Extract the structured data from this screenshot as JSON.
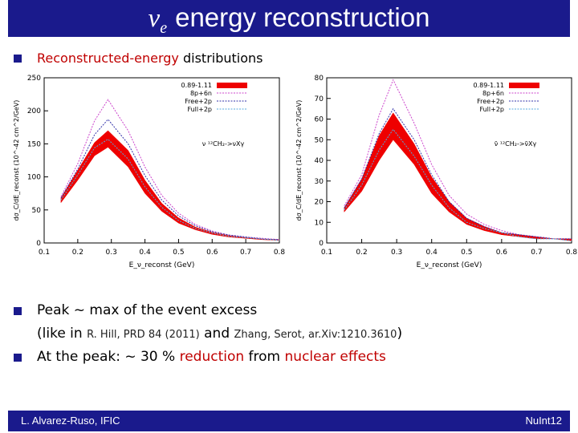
{
  "slide": {
    "title_nu": "ν",
    "title_sub": "e",
    "title_text": "energy reconstruction",
    "bullet1": "Reconstructed-energy",
    "bullet1_rest": " distributions",
    "bullet2": "Peak ~ max of the event excess",
    "bullet2_cont_a": "(like in ",
    "ref1": "R. Hill, PRD 84 (2011)",
    "bullet2_cont_b": " and ",
    "ref2": "Zhang, Serot, ar.Xiv:1210.3610",
    "bullet2_cont_c": ")",
    "bullet3_a": "At the peak: ~ 30 % ",
    "bullet3_red1": "reduction",
    "bullet3_b": " from ",
    "bullet3_red2": "nuclear effects",
    "footer_left": "L. Alvarez-Ruso, IFIC",
    "footer_right": "NuInt12"
  },
  "colors": {
    "band": "#ee0000",
    "title_bg": "#1a1a8c"
  },
  "chart_data": [
    {
      "type": "line",
      "xlabel": "E_ν_reconst (GeV)",
      "ylabel": "dσ_C/dE_reconst (10^-42 cm^2/GeV)",
      "annotation": "ν ¹²CH₂->νXγ",
      "xlim": [
        0.1,
        0.8
      ],
      "ylim": [
        0,
        250
      ],
      "xticks": [
        "0.1",
        "0.2",
        "0.3",
        "0.4",
        "0.5",
        "0.6",
        "0.7",
        "0.8"
      ],
      "yticks": [
        "0",
        "50",
        "100",
        "150",
        "200",
        "250"
      ],
      "x": [
        0.15,
        0.2,
        0.25,
        0.29,
        0.35,
        0.4,
        0.45,
        0.5,
        0.55,
        0.6,
        0.65,
        0.7,
        0.75,
        0.8
      ],
      "band": {
        "name": "0.89-1.11",
        "lower": [
          61,
          95,
          132,
          145,
          115,
          75,
          48,
          30,
          20,
          13,
          9,
          7,
          5,
          4
        ],
        "upper": [
          68,
          110,
          152,
          170,
          140,
          95,
          60,
          38,
          24,
          16,
          11,
          8,
          6,
          5
        ]
      },
      "series": [
        {
          "name": "8p+6n",
          "color": "#cc44cc",
          "values": [
            70,
            120,
            185,
            217,
            170,
            115,
            72,
            45,
            28,
            18,
            12,
            9,
            7,
            5
          ]
        },
        {
          "name": "Free+2p",
          "color": "#3333aa",
          "values": [
            68,
            112,
            164,
            187,
            150,
            102,
            65,
            41,
            26,
            17,
            12,
            9,
            6,
            5
          ]
        },
        {
          "name": "Full+2p",
          "color": "#55aadd",
          "values": [
            65,
            103,
            144,
            157,
            127,
            85,
            54,
            34,
            22,
            15,
            10,
            8,
            6,
            4
          ]
        }
      ]
    },
    {
      "type": "line",
      "xlabel": "E_ν_reconst (GeV)",
      "ylabel": "dσ_C/dE_reconst (10^-42 cm^2/GeV)",
      "annotation": "ν̄ ¹²CH₂->ν̄Xγ",
      "xlim": [
        0.1,
        0.8
      ],
      "ylim": [
        0,
        80
      ],
      "xticks": [
        "0.1",
        "0.2",
        "0.3",
        "0.4",
        "0.5",
        "0.6",
        "0.7",
        "0.8"
      ],
      "yticks": [
        "0",
        "10",
        "20",
        "30",
        "40",
        "50",
        "60",
        "70",
        "80"
      ],
      "x": [
        0.15,
        0.2,
        0.25,
        0.29,
        0.35,
        0.4,
        0.45,
        0.5,
        0.55,
        0.6,
        0.65,
        0.7,
        0.75,
        0.8
      ],
      "band": {
        "name": "0.89-1.11",
        "lower": [
          15,
          25,
          40,
          50,
          38,
          24,
          15,
          9,
          6,
          4,
          3,
          2,
          2,
          1
        ],
        "upper": [
          17,
          31,
          52,
          63,
          48,
          32,
          20,
          12,
          8,
          5,
          4,
          3,
          2,
          2
        ]
      },
      "series": [
        {
          "name": "8p+6n",
          "color": "#cc44cc",
          "values": [
            18,
            33,
            62,
            79,
            58,
            38,
            23,
            14,
            9,
            6,
            4,
            3,
            2,
            2
          ]
        },
        {
          "name": "Free+2p",
          "color": "#3333aa",
          "values": [
            17,
            31,
            53,
            65,
            50,
            33,
            20,
            12,
            8,
            5,
            4,
            3,
            2,
            2
          ]
        },
        {
          "name": "Full+2p",
          "color": "#55aadd",
          "values": [
            16,
            28,
            45,
            55,
            42,
            28,
            17,
            10,
            7,
            5,
            3,
            2,
            2,
            1
          ]
        }
      ]
    }
  ]
}
